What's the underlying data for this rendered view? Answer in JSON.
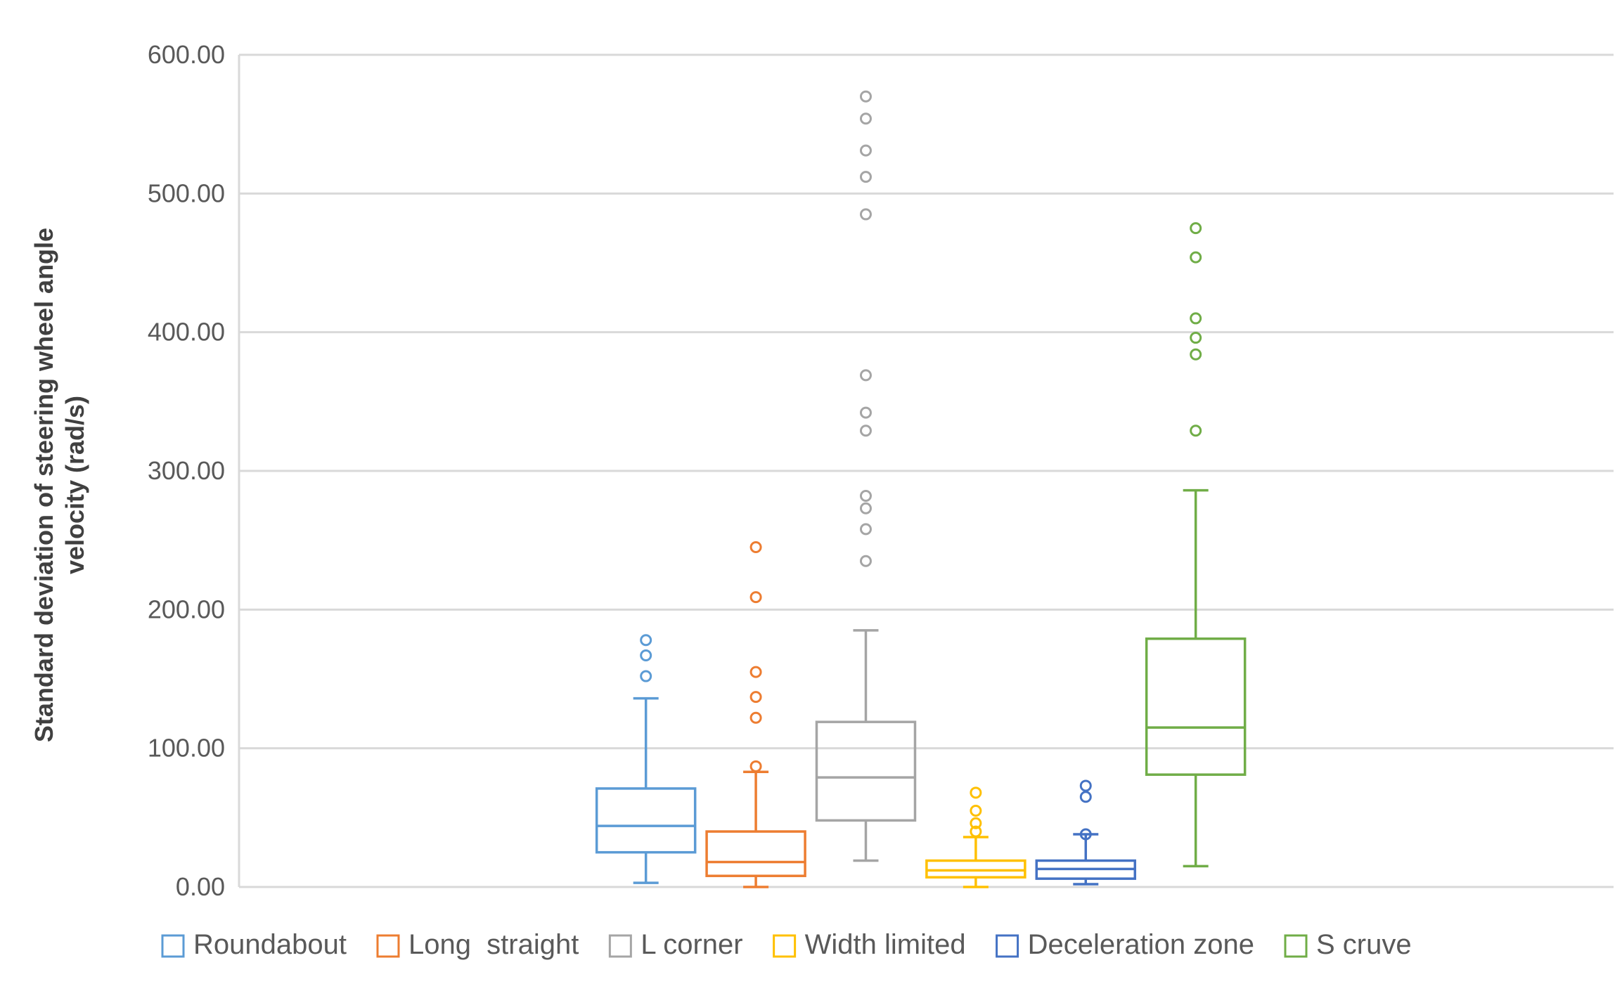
{
  "chart_data": {
    "type": "boxplot",
    "title": "",
    "xlabel": "",
    "ylabel": [
      "Standard deviation of steering wheel angle",
      "velocity  (rad/s)"
    ],
    "ylim": [
      0,
      600
    ],
    "yticks": [
      "0.00",
      "100.00",
      "200.00",
      "300.00",
      "400.00",
      "500.00",
      "600.00"
    ],
    "ytick_values": [
      0,
      100,
      200,
      300,
      400,
      500,
      600
    ],
    "grid": true,
    "legend_position": "bottom",
    "x_range": [
      0,
      12.5
    ],
    "series": [
      {
        "name": "Roundabout",
        "color": "#5B9BD5",
        "x": 3.7,
        "min": 3,
        "q1": 25,
        "median": 44,
        "q3": 71,
        "max": 136,
        "outliers": [
          152,
          167,
          178
        ]
      },
      {
        "name": "Long  straight",
        "color": "#ED7D31",
        "x": 4.7,
        "min": 0,
        "q1": 8,
        "median": 18,
        "q3": 40,
        "max": 83,
        "outliers": [
          87,
          122,
          137,
          155,
          209,
          245
        ]
      },
      {
        "name": "L corner",
        "color": "#A5A5A5",
        "x": 5.7,
        "min": 19,
        "q1": 48,
        "median": 79,
        "q3": 119,
        "max": 185,
        "outliers": [
          235,
          258,
          273,
          282,
          329,
          342,
          369,
          485,
          512,
          531,
          554,
          570
        ]
      },
      {
        "name": "Width limited",
        "color": "#FFC000",
        "x": 6.7,
        "min": 0,
        "q1": 7,
        "median": 12,
        "q3": 19,
        "max": 36,
        "outliers": [
          40,
          46,
          55,
          68
        ]
      },
      {
        "name": "Deceleration zone",
        "color": "#4472C4",
        "x": 7.7,
        "min": 2,
        "q1": 6,
        "median": 13,
        "q3": 19,
        "max": 38,
        "outliers": [
          38,
          65,
          73
        ]
      },
      {
        "name": "S cruve",
        "color": "#70AD47",
        "x": 8.7,
        "min": 15,
        "q1": 81,
        "median": 115,
        "q3": 179,
        "max": 286,
        "outliers": [
          329,
          384,
          396,
          410,
          454,
          475
        ]
      }
    ]
  }
}
